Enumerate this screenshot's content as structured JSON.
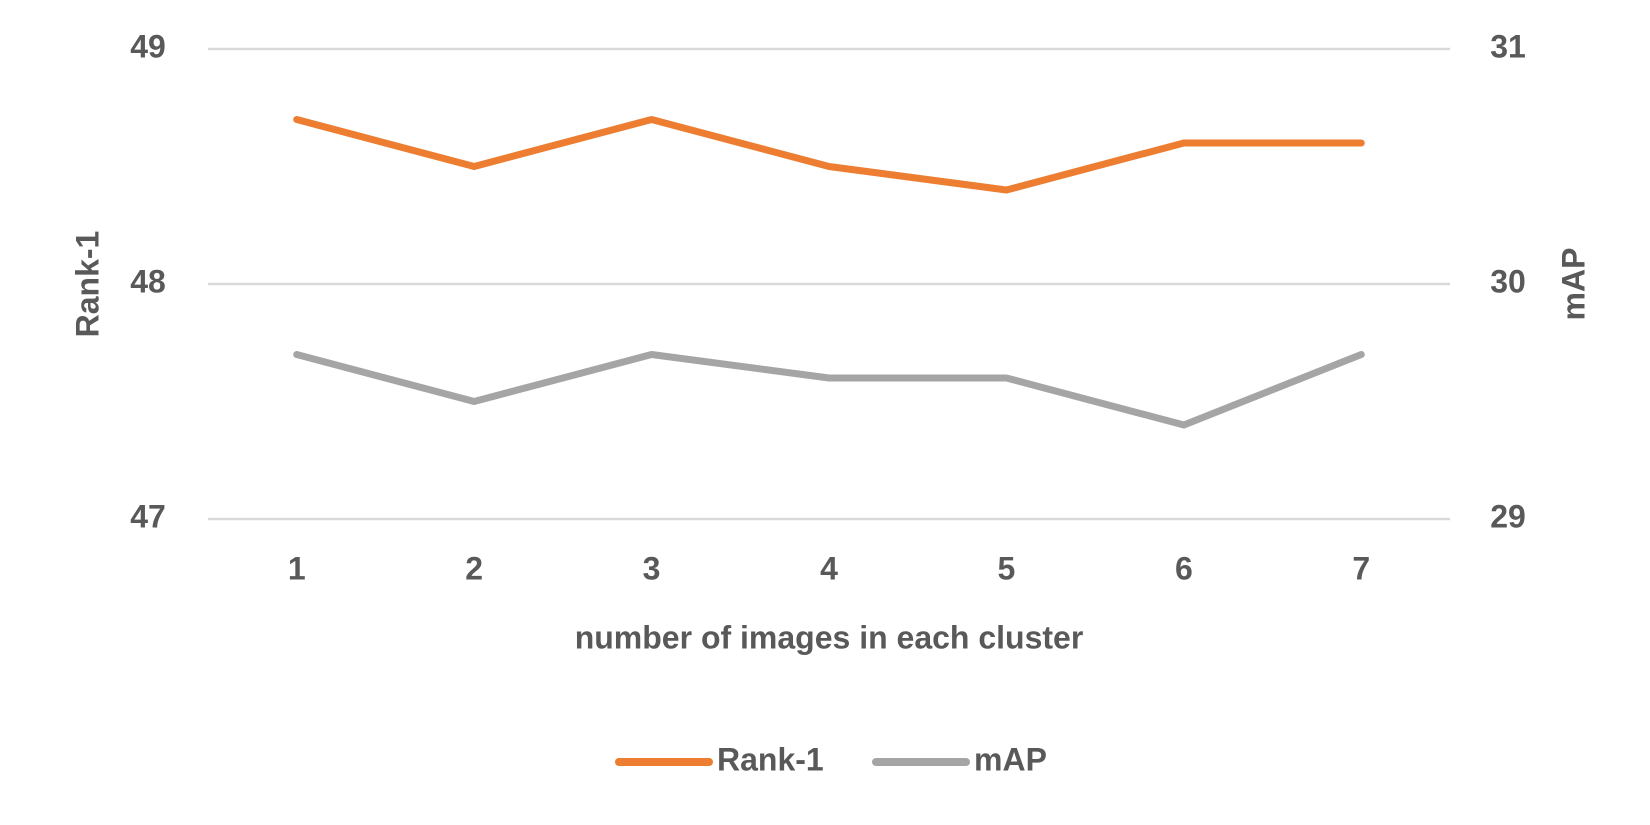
{
  "chart_data": {
    "type": "line",
    "x_label": "number of images in each cluster",
    "y_label": "Rank-1",
    "y2_label": "mAP",
    "categories": [
      "1",
      "2",
      "3",
      "4",
      "5",
      "6",
      "7"
    ],
    "series": [
      {
        "name": "Rank-1",
        "color": "#ed7d31",
        "values": [
          48.7,
          48.5,
          48.7,
          48.5,
          48.4,
          48.6,
          48.6
        ]
      },
      {
        "name": "mAP",
        "color": "#a5a5a5",
        "axis": "y2",
        "values": [
          29.7,
          29.5,
          29.7,
          29.6,
          29.6,
          29.4,
          29.7
        ]
      }
    ],
    "ylim": [
      47,
      49
    ],
    "yticks": [
      47,
      48,
      49
    ],
    "y2lim": [
      29,
      31
    ],
    "y2ticks": [
      29,
      30,
      31
    ],
    "grid": true,
    "legend": "bottom"
  }
}
